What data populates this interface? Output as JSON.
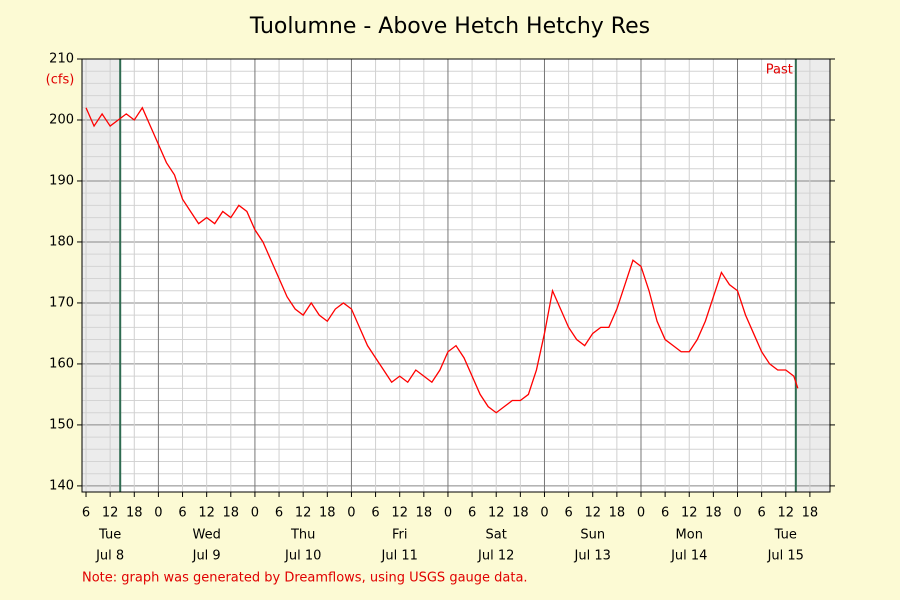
{
  "chart_data": {
    "type": "line",
    "title": "Tuolumne - Above Hetch Hetchy Res",
    "y_label": "(cfs)",
    "note": "Note: graph was generated by Dreamflows, using USGS gauge data.",
    "past_label": "Past",
    "color": "#ff0000",
    "marker_color": "#2e6b50",
    "x": [
      6,
      8,
      10,
      12,
      14,
      16,
      18,
      20,
      22,
      24,
      26,
      28,
      30,
      32,
      34,
      36,
      38,
      40,
      42,
      44,
      46,
      48,
      50,
      52,
      54,
      56,
      58,
      60,
      62,
      64,
      66,
      68,
      70,
      72,
      74,
      76,
      78,
      80,
      82,
      84,
      86,
      88,
      90,
      92,
      94,
      96,
      98,
      100,
      102,
      104,
      106,
      108,
      110,
      112,
      114,
      116,
      118,
      120,
      122,
      124,
      126,
      128,
      130,
      132,
      134,
      136,
      138,
      140,
      142,
      144,
      146,
      148,
      150,
      152,
      154,
      156,
      158,
      160,
      162,
      164,
      166,
      168,
      170,
      172,
      174,
      176,
      178,
      180,
      182,
      183
    ],
    "values": [
      202,
      199,
      201,
      199,
      200,
      201,
      200,
      202,
      199,
      196,
      193,
      191,
      187,
      185,
      183,
      184,
      183,
      185,
      184,
      186,
      185,
      182,
      180,
      177,
      174,
      171,
      169,
      168,
      170,
      168,
      167,
      169,
      170,
      169,
      166,
      163,
      161,
      159,
      157,
      158,
      157,
      159,
      158,
      157,
      159,
      162,
      163,
      161,
      158,
      155,
      153,
      152,
      153,
      154,
      154,
      155,
      159,
      165,
      172,
      169,
      166,
      164,
      163,
      165,
      166,
      166,
      169,
      173,
      177,
      176,
      172,
      167,
      164,
      163,
      162,
      162,
      164,
      167,
      171,
      175,
      173,
      172,
      168,
      165,
      162,
      160,
      159,
      159,
      158,
      156
    ],
    "xlim": [
      5,
      191
    ],
    "xticks": [
      6,
      12,
      18,
      {
        "value": 24,
        "label": "0"
      },
      {
        "value": 30,
        "label": "6"
      },
      {
        "value": 36,
        "label": "12"
      },
      {
        "value": 42,
        "label": "18"
      },
      {
        "value": 48,
        "label": "0"
      },
      {
        "value": 54,
        "label": "6"
      },
      {
        "value": 60,
        "label": "12"
      },
      {
        "value": 66,
        "label": "18"
      },
      {
        "value": 72,
        "label": "0"
      },
      {
        "value": 78,
        "label": "6"
      },
      {
        "value": 84,
        "label": "12"
      },
      {
        "value": 90,
        "label": "18"
      },
      {
        "value": 96,
        "label": "0"
      },
      {
        "value": 102,
        "label": "6"
      },
      {
        "value": 108,
        "label": "12"
      },
      {
        "value": 114,
        "label": "18"
      },
      {
        "value": 120,
        "label": "0"
      },
      {
        "value": 126,
        "label": "6"
      },
      {
        "value": 132,
        "label": "12"
      },
      {
        "value": 138,
        "label": "18"
      },
      {
        "value": 144,
        "label": "0"
      },
      {
        "value": 150,
        "label": "6"
      },
      {
        "value": 156,
        "label": "12"
      },
      {
        "value": 162,
        "label": "18"
      },
      {
        "value": 168,
        "label": "0"
      },
      {
        "value": 174,
        "label": "6"
      },
      {
        "value": 180,
        "label": "12"
      },
      {
        "value": 186,
        "label": "18"
      }
    ],
    "days": [
      {
        "weekday": "Tue",
        "date": "Jul 8",
        "x": 12
      },
      {
        "weekday": "Wed",
        "date": "Jul 9",
        "x": 36
      },
      {
        "weekday": "Thu",
        "date": "Jul 10",
        "x": 60
      },
      {
        "weekday": "Fri",
        "date": "Jul 11",
        "x": 84
      },
      {
        "weekday": "Sat",
        "date": "Jul 12",
        "x": 108
      },
      {
        "weekday": "Sun",
        "date": "Jul 13",
        "x": 132
      },
      {
        "weekday": "Mon",
        "date": "Jul 14",
        "x": 156
      },
      {
        "weekday": "Tue",
        "date": "Jul 15",
        "x": 180
      }
    ],
    "markers": [
      14.5,
      182.5
    ],
    "ylim": [
      139,
      210
    ],
    "yticks": [
      140,
      150,
      160,
      170,
      180,
      190,
      200,
      210
    ],
    "yminor": [
      142,
      144,
      146,
      148,
      152,
      154,
      156,
      158,
      162,
      164,
      166,
      168,
      172,
      174,
      176,
      178,
      182,
      184,
      186,
      188,
      192,
      194,
      196,
      198,
      202,
      204,
      206,
      208
    ],
    "grid": true
  }
}
